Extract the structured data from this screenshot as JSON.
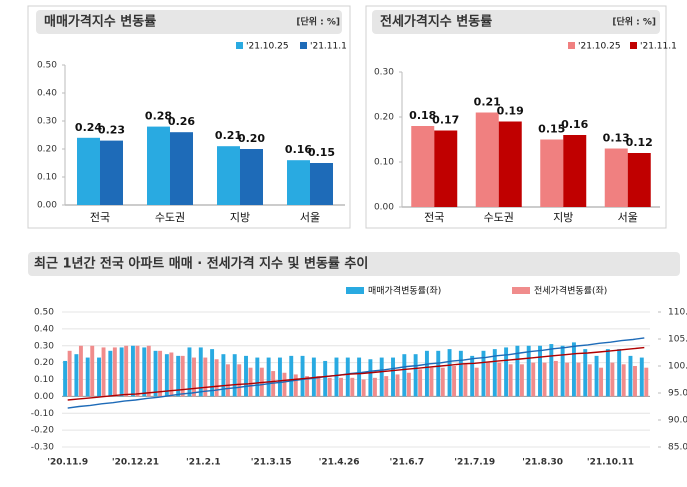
{
  "chart_data": [
    {
      "type": "bar",
      "title": "매매가격지수 변동률",
      "unit": "[단위 : %]",
      "categories": [
        "전국",
        "수도권",
        "지방",
        "서울"
      ],
      "series": [
        {
          "name": "'21.10.25",
          "color": "#29aae1",
          "values": [
            0.24,
            0.28,
            0.21,
            0.16
          ]
        },
        {
          "name": "'21.11.1",
          "color": "#1e6bb8",
          "values": [
            0.23,
            0.26,
            0.2,
            0.15
          ],
          "value_labels": [
            "0.23",
            "0.26",
            "0.20",
            "0.15"
          ]
        }
      ],
      "ylim": [
        0,
        0.5
      ],
      "yticks": [
        {
          "value": 0,
          "label": "0.00"
        },
        {
          "value": 0.1,
          "label": "0.10"
        },
        {
          "value": 0.2,
          "label": "0.20"
        },
        {
          "value": 0.3,
          "label": "0.30"
        },
        {
          "value": 0.4,
          "label": "0.40"
        },
        {
          "value": 0.5,
          "label": "0.50"
        }
      ],
      "grid": false
    },
    {
      "type": "bar",
      "title": "전세가격지수 변동률",
      "unit": "[단위 : %]",
      "categories": [
        "전국",
        "수도권",
        "지방",
        "서울"
      ],
      "series": [
        {
          "name": "'21.10.25",
          "color": "#f08080",
          "values": [
            0.18,
            0.21,
            0.15,
            0.13
          ]
        },
        {
          "name": "'21.11.1",
          "color": "#c00000",
          "values": [
            0.17,
            0.19,
            0.16,
            0.12
          ]
        }
      ],
      "ylim": [
        0,
        0.3
      ],
      "yticks": [
        {
          "value": 0,
          "label": "0.00"
        },
        {
          "value": 0.1,
          "label": "0.10"
        },
        {
          "value": 0.2,
          "label": "0.20"
        },
        {
          "value": 0.3,
          "label": "0.30"
        }
      ],
      "grid": false
    },
    {
      "type": "combo",
      "title": "최근 1년간 전국 아파트 매매 · 전세가격 지수 및 변동률 추이",
      "categories": [
        "'20.11.9",
        null,
        null,
        null,
        null,
        null,
        "'20.12.21",
        null,
        null,
        null,
        null,
        null,
        "'21.2.1",
        null,
        null,
        null,
        null,
        null,
        "'21.3.15",
        null,
        null,
        null,
        null,
        null,
        "'21.4.26",
        null,
        null,
        null,
        null,
        null,
        "'21.6.7",
        null,
        null,
        null,
        null,
        null,
        "'21.7.19",
        null,
        null,
        null,
        null,
        null,
        "'21.8.30",
        null,
        null,
        null,
        null,
        null,
        "'21.10.11",
        null,
        null,
        null
      ],
      "series": [
        {
          "name": "매매가격변동률(좌)",
          "type": "bar",
          "color": "#29aae1",
          "values": [
            0.21,
            0.25,
            0.23,
            0.23,
            0.27,
            0.29,
            0.3,
            0.29,
            0.27,
            0.25,
            0.24,
            0.29,
            0.29,
            0.28,
            0.25,
            0.25,
            0.24,
            0.23,
            0.23,
            0.23,
            0.24,
            0.24,
            0.23,
            0.21,
            0.23,
            0.23,
            0.23,
            0.22,
            0.23,
            0.23,
            0.25,
            0.25,
            0.27,
            0.27,
            0.28,
            0.27,
            0.24,
            0.27,
            0.28,
            0.29,
            0.3,
            0.3,
            0.3,
            0.31,
            0.3,
            0.32,
            0.28,
            0.24,
            0.28,
            0.28,
            0.24,
            0.23
          ]
        },
        {
          "name": "전세가격변동률(좌)",
          "type": "bar",
          "color": "#f08c8c",
          "values": [
            0.27,
            0.3,
            0.3,
            0.29,
            0.29,
            0.3,
            0.3,
            0.3,
            0.27,
            0.26,
            0.24,
            0.23,
            0.23,
            0.22,
            0.19,
            0.19,
            0.17,
            0.17,
            0.15,
            0.14,
            0.13,
            0.12,
            0.12,
            0.11,
            0.11,
            0.11,
            0.1,
            0.11,
            0.12,
            0.13,
            0.14,
            0.16,
            0.17,
            0.17,
            0.18,
            0.19,
            0.17,
            0.2,
            0.2,
            0.19,
            0.19,
            0.2,
            0.2,
            0.21,
            0.2,
            0.2,
            0.19,
            0.17,
            0.2,
            0.19,
            0.18,
            0.17
          ]
        },
        {
          "type": "line",
          "axis": "y2",
          "color": "#1e6bb8",
          "values": [
            92.2,
            92.5,
            92.7,
            93.0,
            93.2,
            93.5,
            93.7,
            94.0,
            94.2,
            94.5,
            94.8,
            95.0,
            95.3,
            95.5,
            95.8,
            96.0,
            96.3,
            96.5,
            96.8,
            97.0,
            97.3,
            97.6,
            97.8,
            98.1,
            98.3,
            98.6,
            98.8,
            99.1,
            99.3,
            99.6,
            99.9,
            100.1,
            100.4,
            100.6,
            100.9,
            101.1,
            101.4,
            101.6,
            101.9,
            102.1,
            102.4,
            102.7,
            102.9,
            103.2,
            103.4,
            103.7,
            103.9,
            104.2,
            104.4,
            104.7,
            104.9,
            105.2
          ]
        },
        {
          "type": "line",
          "axis": "y2",
          "color": "#b00000",
          "values": [
            93.7,
            93.9,
            94.1,
            94.3,
            94.5,
            94.7,
            94.8,
            95.0,
            95.2,
            95.4,
            95.6,
            95.8,
            96.0,
            96.2,
            96.4,
            96.6,
            96.7,
            96.9,
            97.1,
            97.3,
            97.5,
            97.7,
            97.9,
            98.1,
            98.3,
            98.5,
            98.6,
            98.8,
            99.0,
            99.2,
            99.4,
            99.6,
            99.8,
            100.0,
            100.2,
            100.4,
            100.5,
            100.7,
            100.9,
            101.1,
            101.3,
            101.5,
            101.7,
            101.9,
            102.1,
            102.3,
            102.4,
            102.6,
            102.8,
            103.0,
            103.2,
            103.4
          ]
        }
      ],
      "ylim": [
        -0.3,
        0.5
      ],
      "yticks": [
        {
          "value": -0.3,
          "label": "-0.30"
        },
        {
          "value": -0.2,
          "label": "-0.20"
        },
        {
          "value": -0.1,
          "label": "-0.10"
        },
        {
          "value": 0,
          "label": "0.00"
        },
        {
          "value": 0.1,
          "label": "0.10"
        },
        {
          "value": 0.2,
          "label": "0.20"
        },
        {
          "value": 0.3,
          "label": "0.30"
        },
        {
          "value": 0.4,
          "label": "0.40"
        },
        {
          "value": 0.5,
          "label": "0.50"
        }
      ],
      "y2lim": [
        85,
        110
      ],
      "y2ticks": [
        {
          "value": 85,
          "label": "85.0"
        },
        {
          "value": 90,
          "label": "90.0"
        },
        {
          "value": 95,
          "label": "95.0"
        },
        {
          "value": 100,
          "label": "100.0"
        },
        {
          "value": 105,
          "label": "105.0"
        },
        {
          "value": 110,
          "label": "110.0"
        }
      ],
      "grid": true
    }
  ]
}
